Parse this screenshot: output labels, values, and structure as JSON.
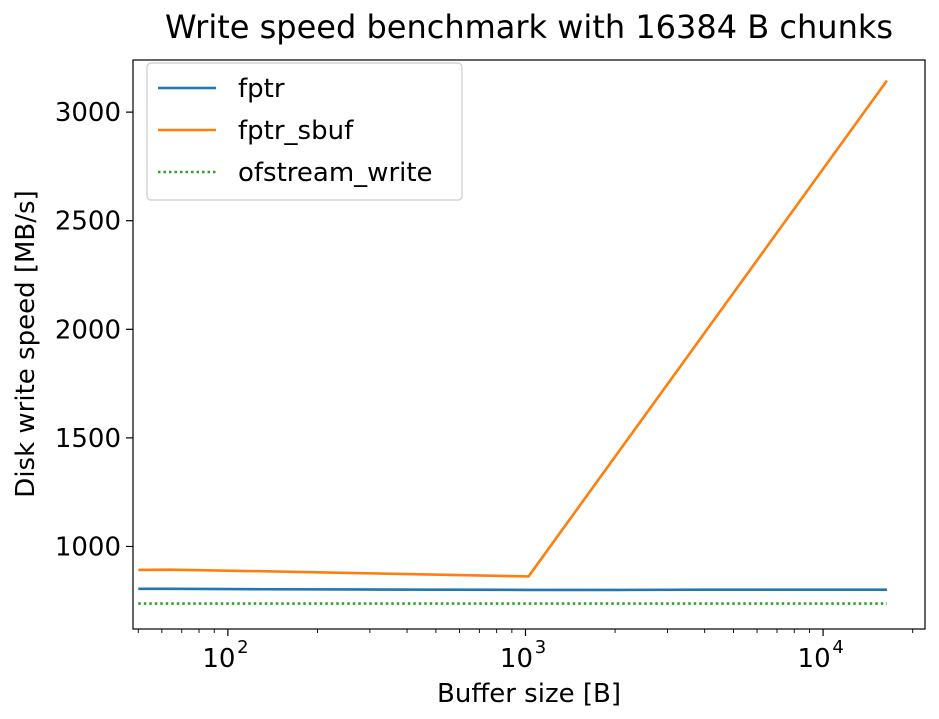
{
  "chart_data": {
    "type": "line",
    "title": "Write speed benchmark with 16384 B chunks",
    "xlabel": "Buffer size [B]",
    "ylabel": "Disk write speed [MB/s]",
    "x_scale": "log",
    "xlim": [
      48,
      22000
    ],
    "ylim": [
      620,
      3240
    ],
    "x_ticks": [
      {
        "value": 100,
        "base": "10",
        "exp": "2"
      },
      {
        "value": 1000,
        "base": "10",
        "exp": "3"
      },
      {
        "value": 10000,
        "base": "10",
        "exp": "4"
      }
    ],
    "y_ticks": [
      1000,
      1500,
      2000,
      2500,
      3000
    ],
    "y_tick_labels": [
      "1000",
      "1500",
      "2000",
      "2500",
      "3000"
    ],
    "grid": false,
    "legend_position": "top-left",
    "series": [
      {
        "name": "fptr",
        "color": "#1f77b4",
        "dash": "solid",
        "x": [
          50,
          64,
          128,
          256,
          512,
          1024,
          2048,
          4096,
          8192,
          16384
        ],
        "y": [
          805,
          805,
          803,
          802,
          801,
          800,
          800,
          801,
          801,
          801
        ]
      },
      {
        "name": "fptr_sbuf",
        "color": "#ff7f0e",
        "dash": "solid",
        "x": [
          50,
          64,
          128,
          256,
          512,
          1024,
          16384
        ],
        "y": [
          892,
          893,
          886,
          878,
          870,
          862,
          3145
        ]
      },
      {
        "name": "ofstream_write",
        "color": "#2ca02c",
        "dash": "dotted",
        "x": [
          50,
          16384
        ],
        "y": [
          737,
          737
        ]
      }
    ]
  }
}
